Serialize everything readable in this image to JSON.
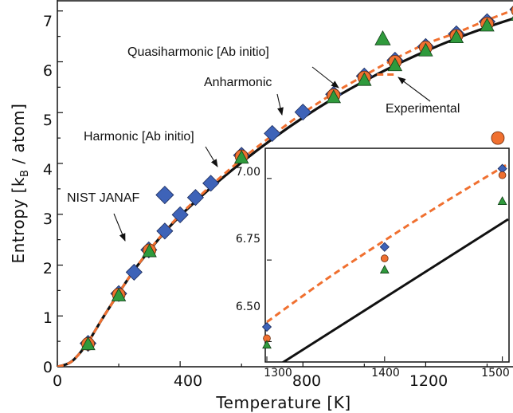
{
  "colors": {
    "harmonic": "#111111",
    "anharmonic": "#f07030",
    "nist": "#3e63b8",
    "quasiharmonic": "#2f9a3c",
    "experimental": "#f07030"
  },
  "icons": {
    "nist": "diamond",
    "quasiharmonic": "triangle",
    "experimental": "circle",
    "pointer": "arrow"
  },
  "chart_data": [
    {
      "type": "scatter",
      "title": "",
      "xlabel": "Temperature [K]",
      "ylabel_main": "Entropy [k",
      "ylabel_sub": "B",
      "ylabel_tail": " / atom]",
      "xlim": [
        0,
        1500
      ],
      "ylim": [
        0,
        7.2
      ],
      "xticks": [
        "0",
        "400",
        "800",
        "1200"
      ],
      "yticks": [
        "0",
        "1",
        "2",
        "3",
        "4",
        "5",
        "6",
        "7"
      ],
      "legend": {
        "quasiharmonic": "Quasiharmonic [Ab initio]",
        "anharmonic": "Anharmonic",
        "experimental": "Experimental",
        "harmonic": "Harmonic [Ab initio]",
        "nist": "NIST JANAF"
      },
      "series": [
        {
          "name": "Harmonic [Ab initio]",
          "style": "solid-line",
          "x": [
            0,
            30,
            50,
            75,
            100,
            125,
            150,
            200,
            250,
            300,
            350,
            400,
            500,
            600,
            700,
            800,
            900,
            1000,
            1100,
            1200,
            1300,
            1400,
            1500
          ],
          "y": [
            0,
            0.05,
            0.12,
            0.28,
            0.48,
            0.73,
            0.98,
            1.45,
            1.9,
            2.29,
            2.65,
            2.97,
            3.52,
            4.02,
            4.48,
            4.9,
            5.28,
            5.62,
            5.93,
            6.21,
            6.46,
            6.68,
            6.88
          ]
        },
        {
          "name": "Anharmonic",
          "style": "dashed-line",
          "x": [
            0,
            30,
            50,
            75,
            100,
            125,
            150,
            200,
            250,
            300,
            350,
            400,
            500,
            600,
            700,
            800,
            900,
            1000,
            1100,
            1200,
            1300,
            1400,
            1500
          ],
          "y": [
            0,
            0.05,
            0.12,
            0.28,
            0.48,
            0.73,
            0.98,
            1.45,
            1.9,
            2.3,
            2.66,
            2.99,
            3.56,
            4.08,
            4.55,
            4.99,
            5.38,
            5.73,
            6.06,
            6.35,
            6.57,
            6.82,
            7.05
          ]
        },
        {
          "name": "NIST JANAF",
          "style": "diamond",
          "x": [
            100,
            200,
            250,
            298,
            350,
            400,
            450,
            500,
            600,
            700,
            800,
            900,
            1000,
            1100,
            1200,
            1300,
            1400,
            1500
          ],
          "y": [
            0.46,
            1.44,
            1.86,
            2.3,
            2.67,
            2.99,
            3.33,
            3.61,
            4.16,
            4.59,
            5.01,
            5.36,
            5.72,
            6.03,
            6.3,
            6.55,
            6.79,
            7.03
          ]
        },
        {
          "name": "Quasiharmonic [Ab initio]",
          "style": "triangle",
          "x": [
            100,
            200,
            300,
            600,
            900,
            1000,
            1100,
            1200,
            1300,
            1400,
            1500
          ],
          "y": [
            0.44,
            1.4,
            2.27,
            4.11,
            5.3,
            5.64,
            5.93,
            6.22,
            6.48,
            6.71,
            6.92
          ]
        },
        {
          "name": "Experimental",
          "style": "circle",
          "x": [
            100,
            200,
            300,
            600,
            900,
            1000,
            1100,
            1200,
            1300,
            1400,
            1500
          ],
          "y": [
            0.45,
            1.42,
            2.29,
            4.14,
            5.34,
            5.69,
            6.0,
            6.28,
            6.51,
            6.75,
            7.01
          ]
        }
      ],
      "annotation_points": [
        {
          "key": "quasiharmonic",
          "x": 1060,
          "y": 6.45,
          "marker": "triangle"
        },
        {
          "key": "anharmonic_sample",
          "x": 1075,
          "y": 5.75
        },
        {
          "key": "experimental",
          "x": 1435,
          "y": 4.5,
          "marker": "circle"
        },
        {
          "key": "harmonic_sample",
          "x": 755,
          "y": 4.1
        },
        {
          "key": "nist",
          "x": 350,
          "y": 3.38,
          "marker": "diamond"
        }
      ]
    },
    {
      "type": "scatter",
      "title": "",
      "xlim": [
        1300,
        1505
      ],
      "ylim": [
        6.44,
        7.09
      ],
      "xticks": [
        "1300",
        "1400",
        "1500"
      ],
      "yticks": [
        "6.50",
        "6.75",
        "7.00"
      ],
      "series": [
        {
          "name": "Harmonic [Ab initio]",
          "style": "solid-line",
          "x": [
            1300,
            1505
          ],
          "y": [
            6.405,
            6.875
          ]
        },
        {
          "name": "Anharmonic",
          "style": "dashed-line",
          "x": [
            1300,
            1350,
            1400,
            1450,
            1505
          ],
          "y": [
            6.56,
            6.69,
            6.81,
            6.925,
            7.045
          ]
        },
        {
          "name": "NIST JANAF",
          "style": "diamond",
          "x": [
            1300,
            1400,
            1500
          ],
          "y": [
            6.545,
            6.79,
            7.03
          ]
        },
        {
          "name": "Experimental",
          "style": "circle",
          "x": [
            1300,
            1400,
            1500
          ],
          "y": [
            6.51,
            6.755,
            7.01
          ]
        },
        {
          "name": "Quasiharmonic [Ab initio]",
          "style": "triangle",
          "x": [
            1300,
            1400,
            1500
          ],
          "y": [
            6.49,
            6.72,
            6.93
          ]
        }
      ]
    }
  ]
}
